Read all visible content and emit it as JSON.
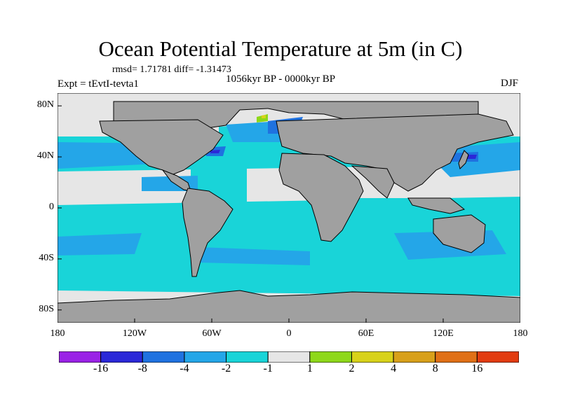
{
  "title": "Ocean Potential Temperature at 5m (in C)",
  "stats_text": "rmsd= 1.71781  diff= -1.31473",
  "experiment": "Expt = tEvtI-tevta1",
  "period": "1056kyr BP - 0000kyr BP",
  "season": "DJF",
  "axes": {
    "lat_ticks": [
      {
        "label": "80N",
        "lat": 80
      },
      {
        "label": "40N",
        "lat": 40
      },
      {
        "label": "0",
        "lat": 0
      },
      {
        "label": "40S",
        "lat": -40
      },
      {
        "label": "80S",
        "lat": -80
      }
    ],
    "lon_ticks": [
      {
        "label": "180",
        "lon": -180
      },
      {
        "label": "120W",
        "lon": -120
      },
      {
        "label": "60W",
        "lon": -60
      },
      {
        "label": "0",
        "lon": 0
      },
      {
        "label": "60E",
        "lon": 60
      },
      {
        "label": "120E",
        "lon": 120
      },
      {
        "label": "180",
        "lon": 180
      }
    ],
    "lat_range": [
      -90,
      90
    ],
    "lon_range": [
      -180,
      180
    ]
  },
  "colorbar": {
    "colors": [
      "#9a22e6",
      "#2b28d8",
      "#1f72e0",
      "#24a6e8",
      "#19d4d8",
      "#e6e6e6",
      "#8ed81a",
      "#d8d21a",
      "#d8a01a",
      "#e07016",
      "#e23c10"
    ],
    "labels": [
      "-16",
      "-8",
      "-4",
      "-2",
      "-1",
      "1",
      "2",
      "4",
      "8",
      "16"
    ]
  },
  "colors": {
    "land": "#a0a0a0",
    "no_data": "#e6e6e6",
    "coastline": "#000000"
  }
}
